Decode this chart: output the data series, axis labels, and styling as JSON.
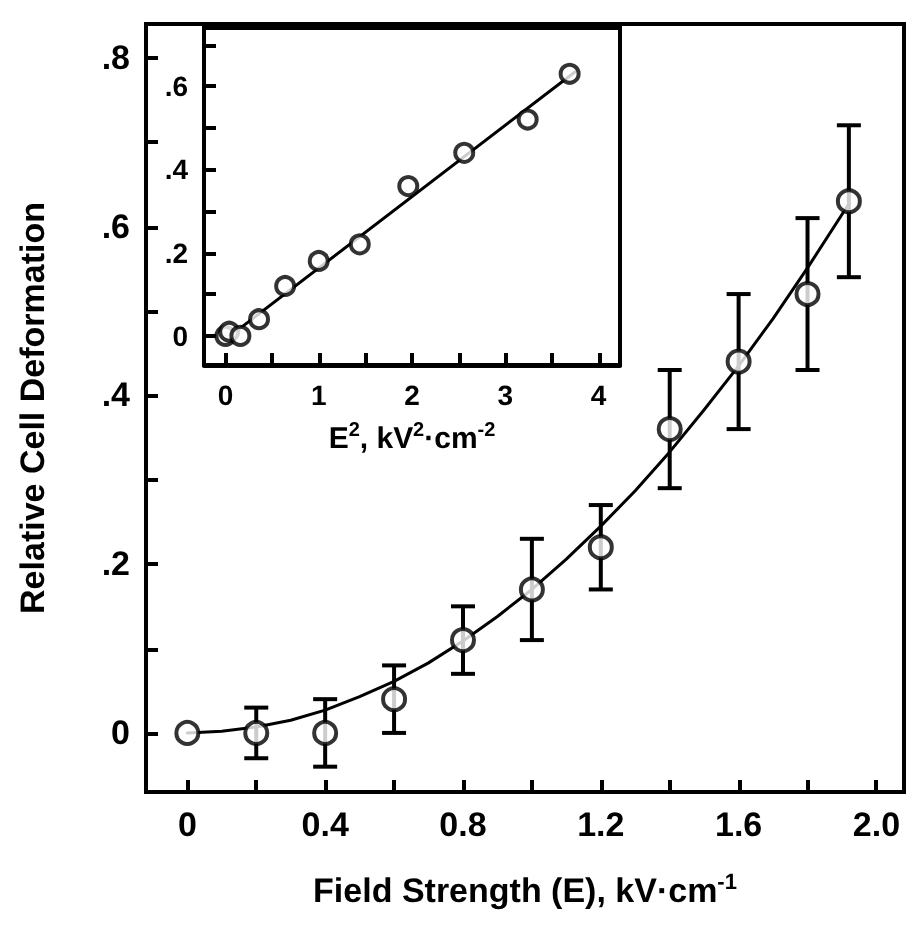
{
  "chart_data": [
    {
      "type": "scatter",
      "xlabel": "Field Strength (E), kV·cm$^{-1}$",
      "ylabel": "Relative Cell Deformation",
      "x": [
        0,
        0.2,
        0.4,
        0.6,
        0.8,
        1.0,
        1.2,
        1.4,
        1.6,
        1.8,
        1.92
      ],
      "xlim": [
        -0.12,
        2.08
      ],
      "xticks": [
        0,
        {
          "value": 0.2,
          "label": null
        },
        {
          "value": 0.4,
          "label": "0.4"
        },
        {
          "value": 0.6,
          "label": null
        },
        {
          "value": 0.8,
          "label": "0.8"
        },
        {
          "value": 1,
          "label": null
        },
        {
          "value": 1.2,
          "label": "1.2"
        },
        {
          "value": 1.4,
          "label": null
        },
        {
          "value": 1.6,
          "label": "1.6"
        },
        {
          "value": 1.8,
          "label": null
        },
        {
          "value": 2,
          "label": "2.0"
        }
      ],
      "ylim": [
        -0.07,
        0.84
      ],
      "yticks": [
        0,
        {
          "value": 0.1,
          "label": null
        },
        {
          "value": 0.2,
          "label": ".2"
        },
        {
          "value": 0.3,
          "label": null
        },
        {
          "value": 0.4,
          "label": ".4"
        },
        {
          "value": 0.5,
          "label": null
        },
        {
          "value": 0.6,
          "label": ".6"
        },
        {
          "value": 0.7,
          "label": null
        },
        {
          "value": 0.8,
          "label": ".8"
        }
      ],
      "series": [
        {
          "color": "#000000",
          "marker": "circle",
          "values": [
            0,
            0,
            0,
            0.04,
            0.11,
            0.17,
            0.22,
            0.36,
            0.44,
            0.52,
            0.63
          ],
          "errors": [
            null,
            0.03,
            0.04,
            0.04,
            0.04,
            0.06,
            0.05,
            0.07,
            0.08,
            0.09,
            0.09
          ]
        },
        {
          "type": "line",
          "color": "#000000",
          "marker": "none",
          "line_style": "solid",
          "x": [
            0,
            0.1,
            0.2,
            0.3,
            0.4,
            0.5,
            0.6,
            0.7,
            0.8,
            0.9,
            1.0,
            1.1,
            1.2,
            1.3,
            1.4,
            1.5,
            1.6,
            1.7,
            1.8,
            1.92
          ],
          "values": [
            0,
            0.002,
            0.007,
            0.015,
            0.027,
            0.043,
            0.061,
            0.083,
            0.109,
            0.138,
            0.17,
            0.206,
            0.245,
            0.287,
            0.333,
            0.383,
            0.435,
            0.491,
            0.551,
            0.627
          ]
        }
      ]
    },
    {
      "type": "scatter",
      "xlabel": "E$^{2}$, kV$^{2}$·cm$^{-2}$",
      "x": [
        0,
        0.04,
        0.16,
        0.36,
        0.64,
        1,
        1.44,
        1.96,
        2.56,
        3.24,
        3.69
      ],
      "xlim": [
        -0.23,
        4.23
      ],
      "xticks": [
        0,
        {
          "value": 0.5,
          "label": null
        },
        1,
        {
          "value": 1.5,
          "label": null
        },
        2,
        {
          "value": 2.5,
          "label": null
        },
        3,
        {
          "value": 3.5,
          "label": null
        },
        4
      ],
      "ylim": [
        -0.07,
        0.74
      ],
      "yticks": [
        0,
        {
          "value": 0.1,
          "label": null
        },
        {
          "value": 0.2,
          "label": ".2"
        },
        {
          "value": 0.3,
          "label": null
        },
        {
          "value": 0.4,
          "label": ".4"
        },
        {
          "value": 0.5,
          "label": null
        },
        {
          "value": 0.6,
          "label": ".6"
        },
        {
          "value": 0.7,
          "label": null
        }
      ],
      "series": [
        {
          "color": "#000000",
          "marker": "circle",
          "values": [
            0,
            0.01,
            0,
            0.04,
            0.12,
            0.18,
            0.22,
            0.36,
            0.44,
            0.52,
            0.63
          ]
        },
        {
          "type": "line",
          "color": "#000000",
          "marker": "none",
          "line_style": "solid",
          "x": [
            0.05,
            3.75
          ],
          "values": [
            0,
            0.635
          ]
        }
      ]
    }
  ]
}
